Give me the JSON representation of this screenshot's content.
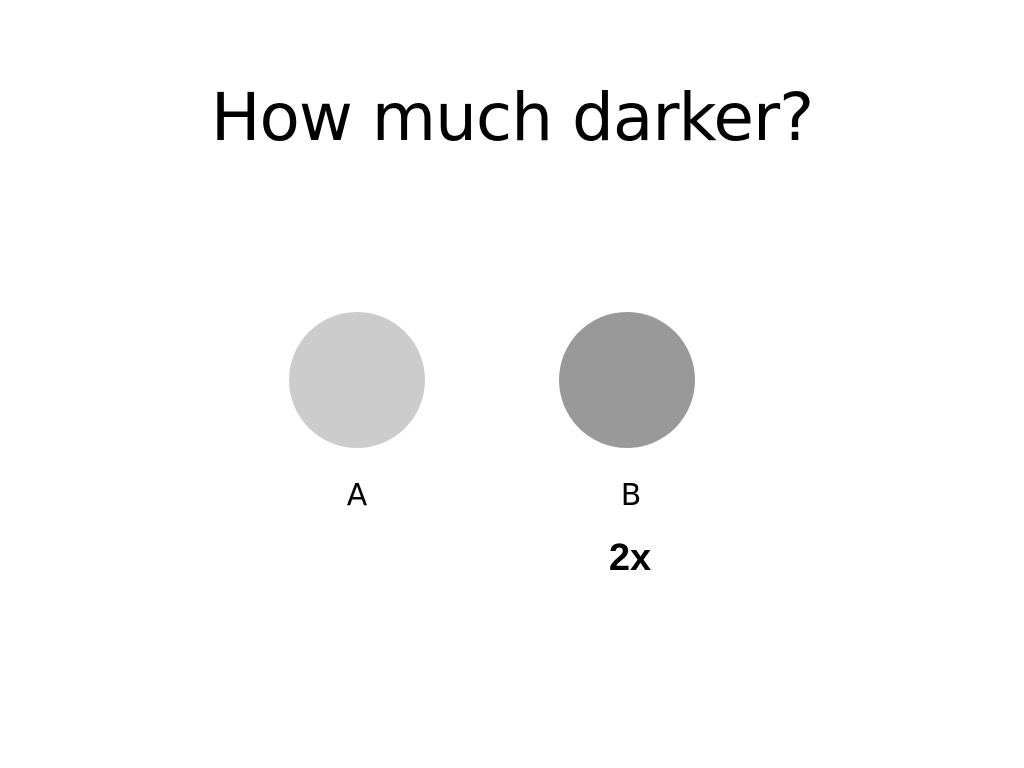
{
  "slide": {
    "title": "How much darker?",
    "circles": [
      {
        "label": "A",
        "color": "#cccccc"
      },
      {
        "label": "B",
        "color": "#999999"
      }
    ],
    "ratio_label": "2x"
  }
}
